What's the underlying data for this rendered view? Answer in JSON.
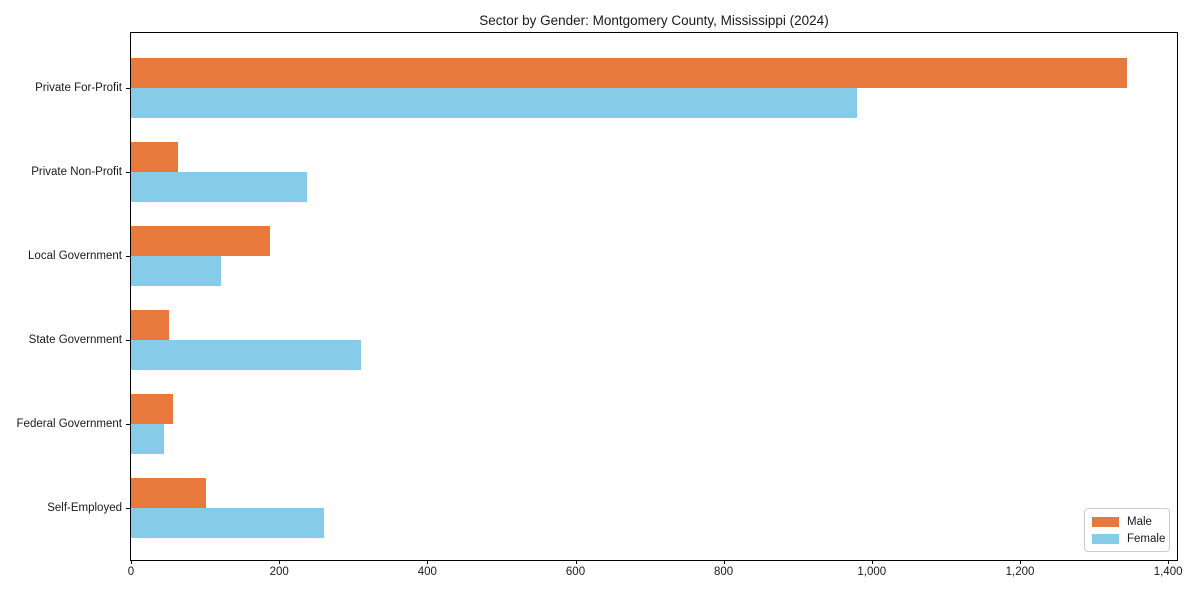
{
  "chart_data": {
    "type": "bar",
    "orientation": "horizontal",
    "title": "Sector by Gender: Montgomery County, Mississippi (2024)",
    "categories": [
      "Private For-Profit",
      "Private Non-Profit",
      "Local Government",
      "State Government",
      "Federal Government",
      "Self-Employed"
    ],
    "series": [
      {
        "name": "Male",
        "color": "#e8793d",
        "values": [
          1345,
          63,
          187,
          51,
          56,
          101
        ]
      },
      {
        "name": "Female",
        "color": "#86cbe8",
        "values": [
          980,
          237,
          121,
          311,
          45,
          260
        ]
      }
    ],
    "x_axis": {
      "min": 0,
      "max": 1412,
      "ticks": [
        0,
        200,
        400,
        600,
        800,
        1000,
        1200,
        1400
      ],
      "tick_labels": [
        "0",
        "200",
        "400",
        "600",
        "800",
        "1,000",
        "1,200",
        "1,400"
      ]
    },
    "y_axis_label": "",
    "x_axis_label": "",
    "grid": false,
    "legend": {
      "position": "lower right"
    },
    "colors": {
      "axis": "#000000",
      "text": "#1a1a1a",
      "background": "#ffffff"
    }
  }
}
